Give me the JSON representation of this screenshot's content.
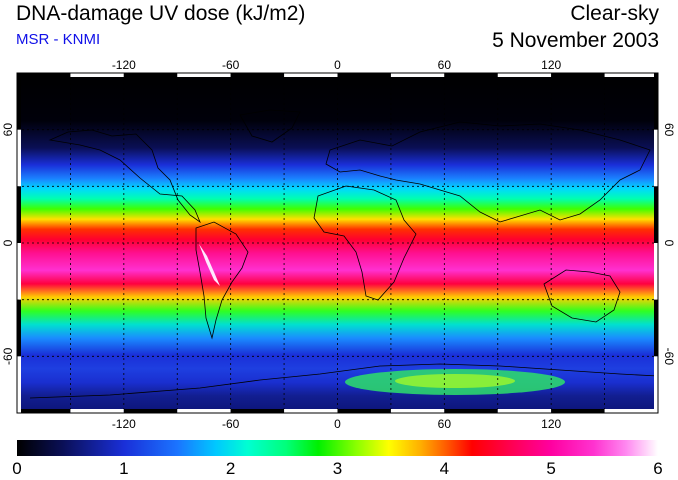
{
  "header": {
    "title": "DNA-damage UV dose (kJ/m2)",
    "subtitle": "MSR - KNMI",
    "sky_condition": "Clear-sky",
    "date": "5 November 2003"
  },
  "map": {
    "projection": "equirectangular",
    "lon_range": [
      -180,
      180
    ],
    "lat_range": [
      -90,
      90
    ],
    "grid_lons": [
      -150,
      -120,
      -90,
      -60,
      -30,
      0,
      30,
      60,
      90,
      120,
      150
    ],
    "grid_lats": [
      -60,
      -30,
      0,
      30,
      60
    ],
    "lon_tick_labels": [
      "-120",
      "-60",
      "0",
      "60",
      "120"
    ],
    "lat_tick_labels": [
      "60",
      "0",
      "-60"
    ],
    "gridlines": "dashed"
  },
  "colorbar": {
    "min": 0,
    "max": 6,
    "tick_labels": [
      "0",
      "1",
      "2",
      "3",
      "4",
      "5",
      "6"
    ],
    "colors": [
      "#000000",
      "#1a2fd8",
      "#00ffd2",
      "#00f000",
      "#ffff00",
      "#ff0000",
      "#ff00a0",
      "#ffffff"
    ]
  }
}
